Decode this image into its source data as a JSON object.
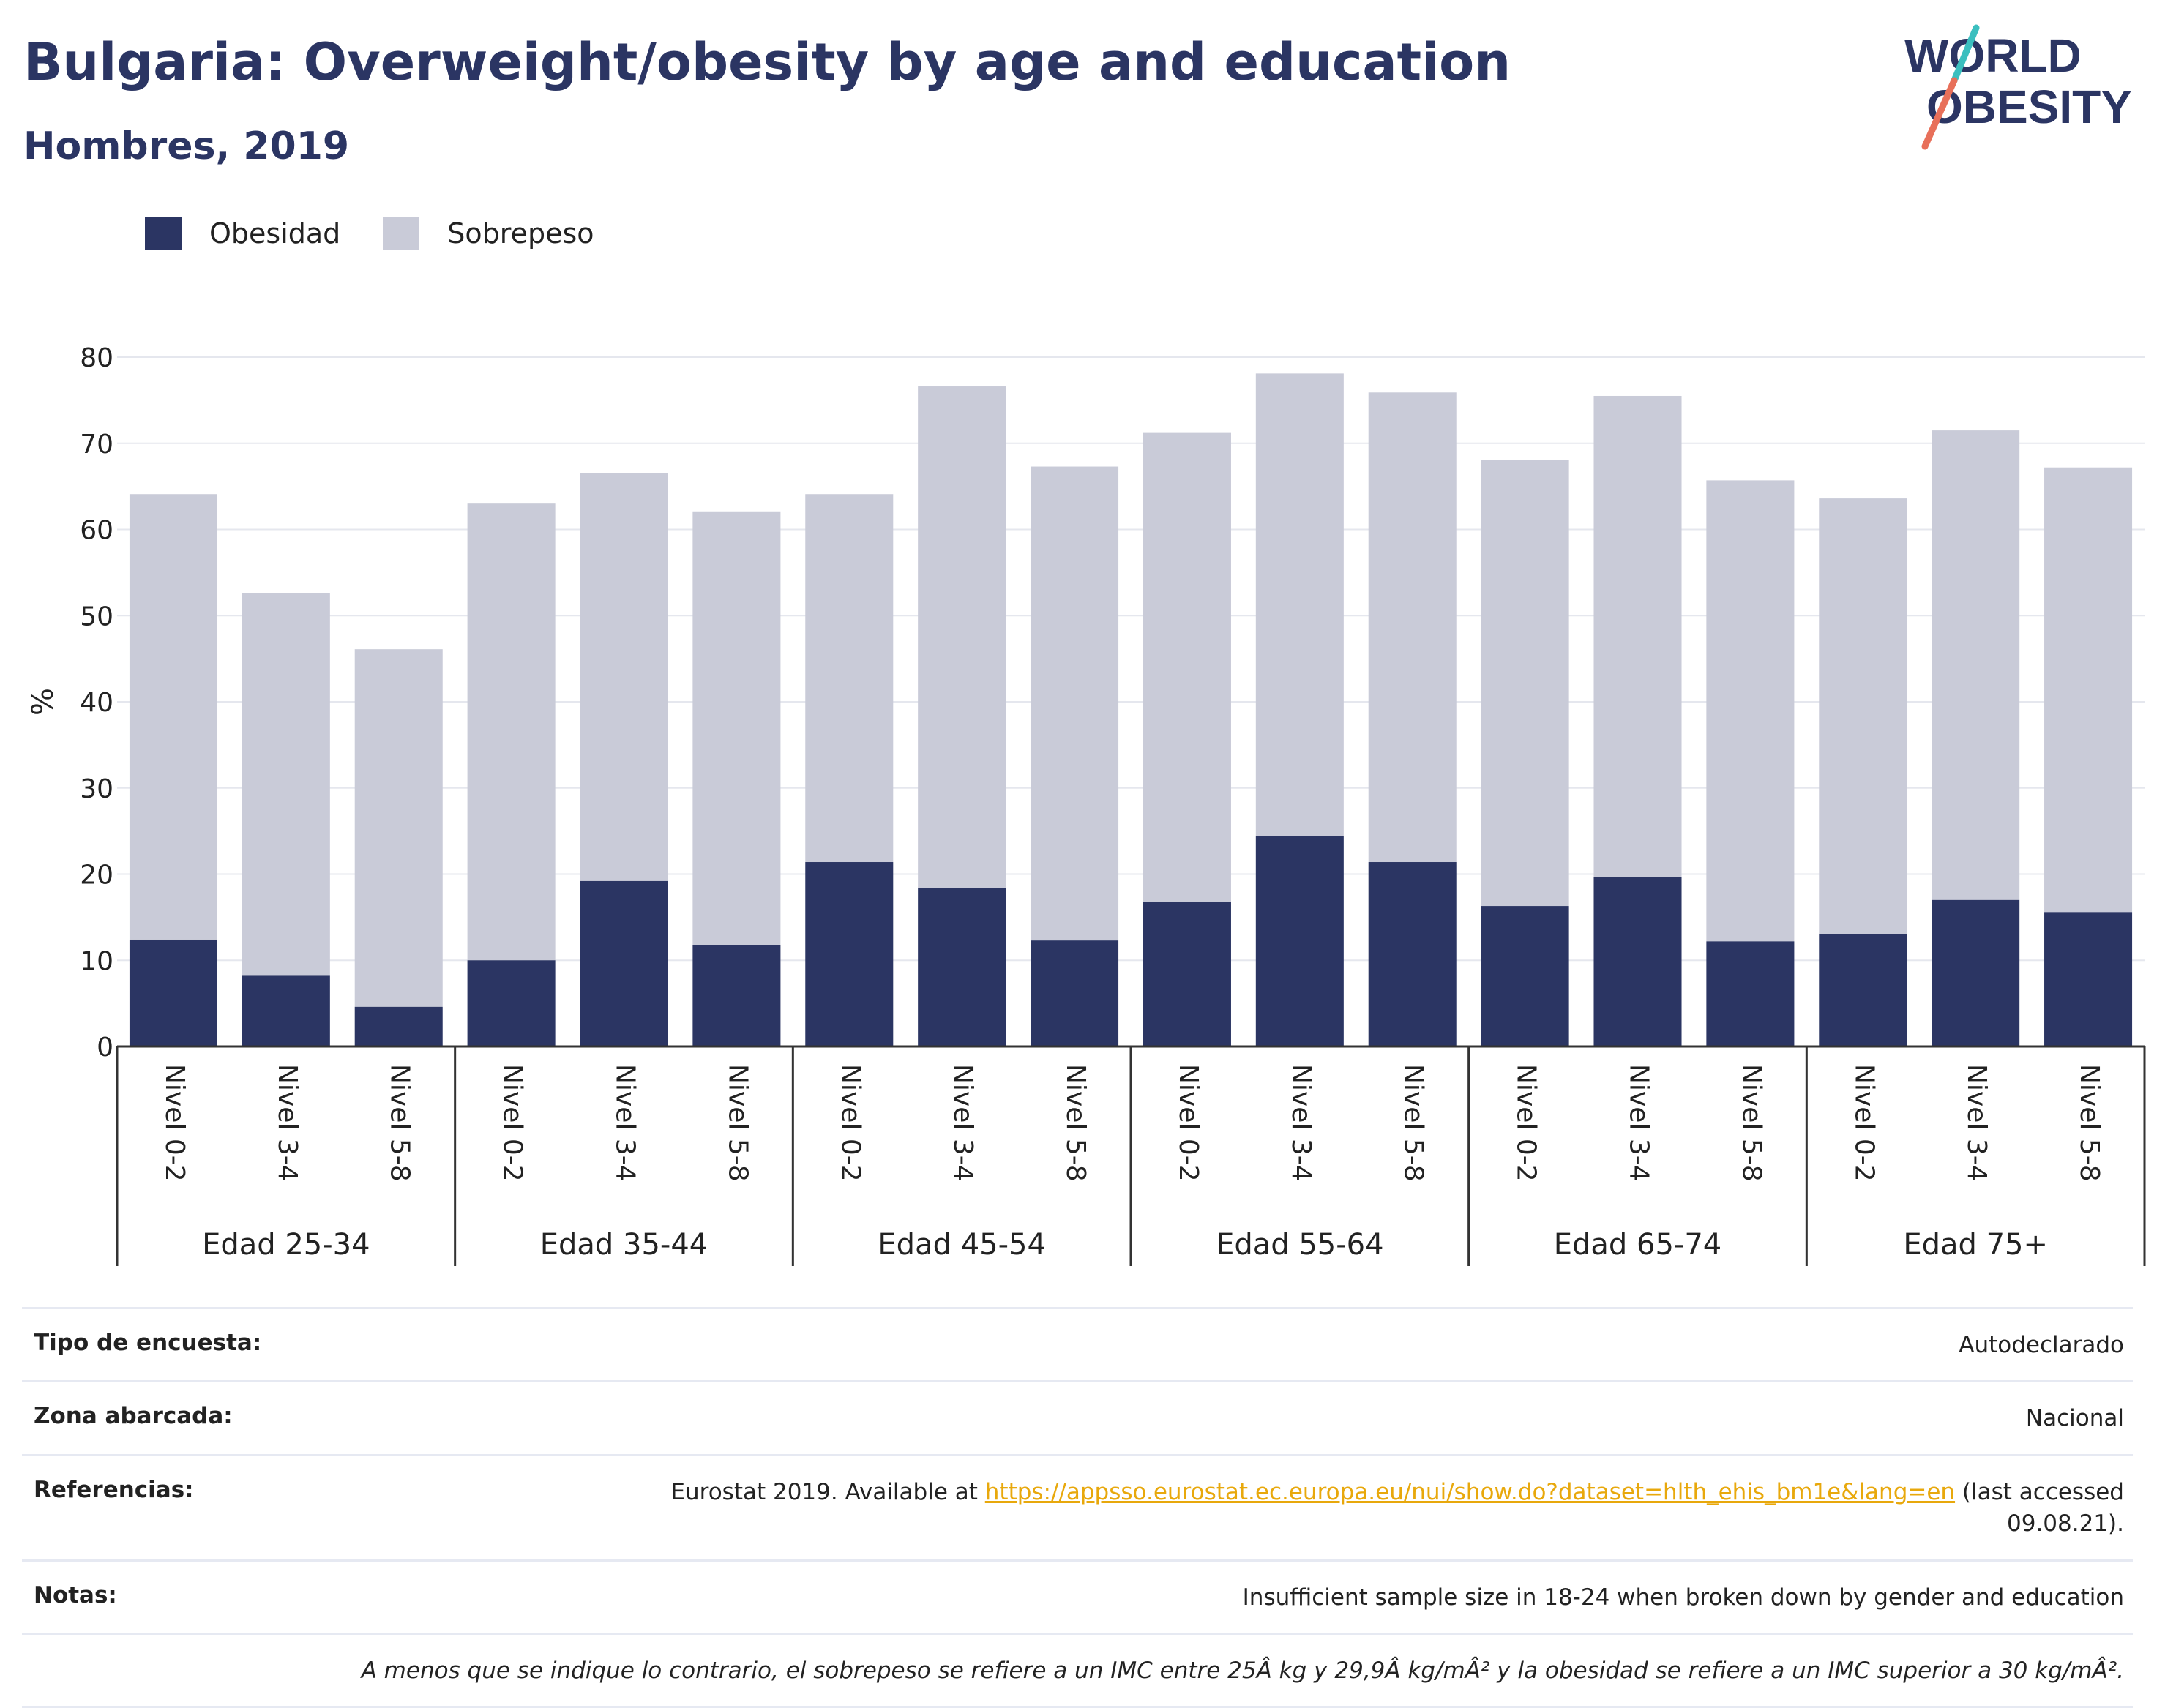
{
  "header": {
    "title": "Bulgaria: Overweight/obesity by age and education",
    "subtitle": "Hombres, 2019"
  },
  "logo": {
    "line1": "WORLD",
    "line2": "OBESITY",
    "colors": {
      "text": "#2b3563",
      "slash_top": "#3bbfbf",
      "slash_bottom": "#e8705a"
    }
  },
  "colors": {
    "obesity": "#2b3563",
    "overweight": "#c9cbd8",
    "grid": "#e5e7ee",
    "axis": "#333333",
    "link": "#e8a80c"
  },
  "chart_data": {
    "type": "bar",
    "stacked": true,
    "ylabel": "%",
    "ylim": [
      0,
      80
    ],
    "yticks": [
      0,
      10,
      20,
      30,
      40,
      50,
      60,
      70,
      80
    ],
    "grid": true,
    "legend_position": "top-left",
    "groups": [
      "Edad 25-34",
      "Edad 35-44",
      "Edad 45-54",
      "Edad 55-64",
      "Edad 65-74",
      "Edad 75+"
    ],
    "subcategories": [
      "Nivel 0-2",
      "Nivel 3-4",
      "Nivel 5-8"
    ],
    "series": [
      {
        "name": "Obesidad",
        "values": [
          12.4,
          8.2,
          4.6,
          10.0,
          19.2,
          11.8,
          21.4,
          18.4,
          12.3,
          16.8,
          24.4,
          21.4,
          16.3,
          19.7,
          12.2,
          13.0,
          17.0,
          15.6
        ]
      },
      {
        "name": "Sobrepeso",
        "values": [
          51.7,
          44.4,
          41.5,
          53.0,
          47.3,
          50.3,
          42.7,
          58.2,
          55.0,
          54.4,
          53.7,
          54.5,
          51.8,
          55.8,
          53.5,
          50.6,
          54.5,
          51.6
        ]
      }
    ]
  },
  "info": {
    "survey_label": "Tipo de encuesta:",
    "survey_value": "Autodeclarado",
    "area_label": "Zona abarcada:",
    "area_value": "Nacional",
    "refs_label": "Referencias:",
    "refs_prefix": "Eurostat 2019. Available at ",
    "refs_link": "https://appsso.eurostat.ec.europa.eu/nui/show.do?dataset=hlth_ehis_bm1e&lang=en",
    "refs_suffix": " (last accessed 09.08.21).",
    "notes_label": "Notas:",
    "notes_value": "Insufficient sample size in 18-24 when broken down by gender and education",
    "footnote": "A menos que se indique lo contrario, el sobrepeso se refiere a un IMC entre 25Â kg y 29,9Â kg/mÂ² y la obesidad se refiere a un IMC superior a 30 kg/mÂ²."
  }
}
